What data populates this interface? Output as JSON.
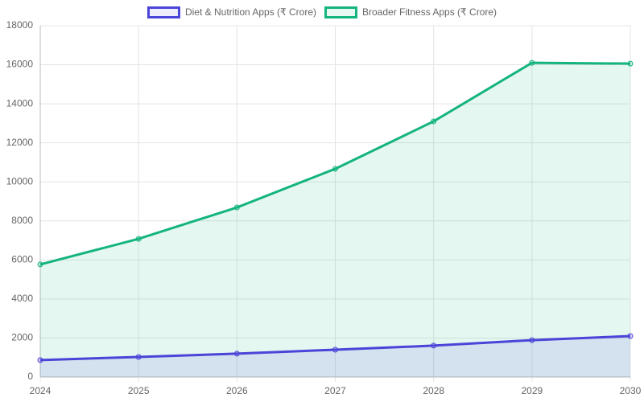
{
  "chart_data": {
    "type": "area",
    "categories": [
      "2024",
      "2025",
      "2026",
      "2027",
      "2028",
      "2029",
      "2030"
    ],
    "series": [
      {
        "name": "Diet & Nutrition Apps (₹ Crore)",
        "color": "#4b44d9",
        "values": [
          870,
          1030,
          1200,
          1400,
          1610,
          1890,
          2100
        ]
      },
      {
        "name": "Broader Fitness Apps (₹ Crore)",
        "color": "#14b47e",
        "values": [
          5770,
          7080,
          8690,
          10670,
          13100,
          16100,
          16060
        ]
      }
    ],
    "ylim": [
      0,
      18000
    ],
    "yticks": [
      0,
      2000,
      4000,
      6000,
      8000,
      10000,
      12000,
      14000,
      16000,
      18000
    ],
    "grid": true,
    "legend": "top"
  }
}
